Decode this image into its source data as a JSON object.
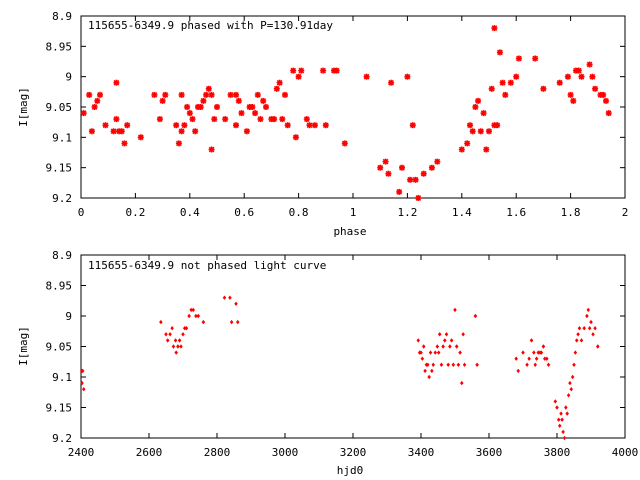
{
  "chart_data": [
    {
      "type": "scatter",
      "title": "115655-6349.9 phased with P=130.91day",
      "xlabel": "phase",
      "ylabel": "I[mag]",
      "xlim": [
        0,
        2
      ],
      "ylim": [
        9.2,
        8.9
      ],
      "y_inverted": true,
      "xticks": [
        "0",
        "0.2",
        "0.4",
        "0.6",
        "0.8",
        "1",
        "1.2",
        "1.4",
        "1.6",
        "1.8",
        "2"
      ],
      "yticks": [
        "8.9",
        "8.95",
        "9",
        "9.05",
        "9.1",
        "9.15",
        "9.2"
      ],
      "marker": "star",
      "color": "#ff0000",
      "grid": false,
      "points": [
        [
          0.01,
          9.06
        ],
        [
          0.03,
          9.03
        ],
        [
          0.04,
          9.09
        ],
        [
          0.05,
          9.05
        ],
        [
          0.06,
          9.04
        ],
        [
          0.07,
          9.03
        ],
        [
          0.09,
          9.08
        ],
        [
          0.12,
          9.09
        ],
        [
          0.13,
          9.01
        ],
        [
          0.13,
          9.07
        ],
        [
          0.14,
          9.09
        ],
        [
          0.15,
          9.09
        ],
        [
          0.16,
          9.11
        ],
        [
          0.17,
          9.08
        ],
        [
          0.22,
          9.1
        ],
        [
          0.27,
          9.03
        ],
        [
          0.29,
          9.07
        ],
        [
          0.3,
          9.04
        ],
        [
          0.31,
          9.03
        ],
        [
          0.35,
          9.08
        ],
        [
          0.36,
          9.11
        ],
        [
          0.37,
          9.03
        ],
        [
          0.37,
          9.09
        ],
        [
          0.38,
          9.08
        ],
        [
          0.39,
          9.05
        ],
        [
          0.4,
          9.06
        ],
        [
          0.41,
          9.07
        ],
        [
          0.42,
          9.09
        ],
        [
          0.43,
          9.05
        ],
        [
          0.44,
          9.05
        ],
        [
          0.45,
          9.04
        ],
        [
          0.46,
          9.03
        ],
        [
          0.47,
          9.02
        ],
        [
          0.48,
          9.12
        ],
        [
          0.48,
          9.03
        ],
        [
          0.49,
          9.07
        ],
        [
          0.5,
          9.05
        ],
        [
          0.53,
          9.07
        ],
        [
          0.55,
          9.03
        ],
        [
          0.57,
          9.03
        ],
        [
          0.57,
          9.08
        ],
        [
          0.58,
          9.04
        ],
        [
          0.59,
          9.06
        ],
        [
          0.61,
          9.09
        ],
        [
          0.62,
          9.05
        ],
        [
          0.63,
          9.05
        ],
        [
          0.64,
          9.06
        ],
        [
          0.65,
          9.03
        ],
        [
          0.66,
          9.07
        ],
        [
          0.67,
          9.04
        ],
        [
          0.68,
          9.05
        ],
        [
          0.7,
          9.07
        ],
        [
          0.71,
          9.07
        ],
        [
          0.72,
          9.02
        ],
        [
          0.73,
          9.01
        ],
        [
          0.74,
          9.07
        ],
        [
          0.75,
          9.03
        ],
        [
          0.76,
          9.08
        ],
        [
          0.78,
          8.99
        ],
        [
          0.79,
          9.1
        ],
        [
          0.8,
          9.0
        ],
        [
          0.81,
          8.99
        ],
        [
          0.83,
          9.07
        ],
        [
          0.84,
          9.08
        ],
        [
          0.86,
          9.08
        ],
        [
          0.89,
          8.99
        ],
        [
          0.9,
          9.08
        ],
        [
          0.93,
          8.99
        ],
        [
          0.94,
          8.99
        ],
        [
          0.97,
          9.11
        ],
        [
          1.05,
          9.0
        ],
        [
          1.1,
          9.15
        ],
        [
          1.12,
          9.14
        ],
        [
          1.13,
          9.16
        ],
        [
          1.14,
          9.01
        ],
        [
          1.17,
          9.19
        ],
        [
          1.18,
          9.15
        ],
        [
          1.2,
          9.0
        ],
        [
          1.21,
          9.17
        ],
        [
          1.22,
          9.08
        ],
        [
          1.23,
          9.17
        ],
        [
          1.24,
          9.2
        ],
        [
          1.26,
          9.16
        ],
        [
          1.29,
          9.15
        ],
        [
          1.31,
          9.14
        ],
        [
          1.4,
          9.12
        ],
        [
          1.42,
          9.11
        ],
        [
          1.43,
          9.08
        ],
        [
          1.44,
          9.09
        ],
        [
          1.45,
          9.05
        ],
        [
          1.46,
          9.04
        ],
        [
          1.47,
          9.09
        ],
        [
          1.48,
          9.06
        ],
        [
          1.49,
          9.12
        ],
        [
          1.5,
          9.09
        ],
        [
          1.51,
          9.02
        ],
        [
          1.52,
          9.08
        ],
        [
          1.52,
          8.92
        ],
        [
          1.53,
          9.08
        ],
        [
          1.54,
          8.96
        ],
        [
          1.55,
          9.01
        ],
        [
          1.56,
          9.03
        ],
        [
          1.58,
          9.01
        ],
        [
          1.6,
          9.0
        ],
        [
          1.61,
          8.97
        ],
        [
          1.67,
          8.97
        ],
        [
          1.7,
          9.02
        ],
        [
          1.76,
          9.01
        ],
        [
          1.79,
          9.0
        ],
        [
          1.8,
          9.03
        ],
        [
          1.81,
          9.04
        ],
        [
          1.82,
          8.99
        ],
        [
          1.83,
          8.99
        ],
        [
          1.84,
          9.0
        ],
        [
          1.87,
          8.98
        ],
        [
          1.88,
          9.0
        ],
        [
          1.89,
          9.02
        ],
        [
          1.91,
          9.03
        ],
        [
          1.92,
          9.03
        ],
        [
          1.93,
          9.04
        ],
        [
          1.94,
          9.06
        ]
      ]
    },
    {
      "type": "scatter",
      "title": "115655-6349.9 not phased light curve",
      "xlabel": "hjd0",
      "ylabel": "I[mag]",
      "xlim": [
        2400,
        4000
      ],
      "ylim": [
        9.2,
        8.9
      ],
      "y_inverted": true,
      "xticks": [
        "2400",
        "2600",
        "2800",
        "3000",
        "3200",
        "3400",
        "3600",
        "3800",
        "4000"
      ],
      "yticks": [
        "8.9",
        "8.95",
        "9",
        "9.05",
        "9.1",
        "9.15",
        "9.2"
      ],
      "marker": "diamond",
      "color": "#ff0000",
      "grid": false,
      "points": [
        [
          2402,
          9.09
        ],
        [
          2403,
          9.11
        ],
        [
          2405,
          9.09
        ],
        [
          2408,
          9.12
        ],
        [
          2635,
          9.01
        ],
        [
          2650,
          9.03
        ],
        [
          2655,
          9.04
        ],
        [
          2662,
          9.03
        ],
        [
          2668,
          9.02
        ],
        [
          2672,
          9.05
        ],
        [
          2678,
          9.04
        ],
        [
          2680,
          9.06
        ],
        [
          2685,
          9.05
        ],
        [
          2690,
          9.04
        ],
        [
          2694,
          9.05
        ],
        [
          2700,
          9.03
        ],
        [
          2705,
          9.02
        ],
        [
          2710,
          9.02
        ],
        [
          2718,
          9.0
        ],
        [
          2724,
          8.99
        ],
        [
          2730,
          8.99
        ],
        [
          2738,
          9.0
        ],
        [
          2745,
          9.0
        ],
        [
          2760,
          9.01
        ],
        [
          2822,
          8.97
        ],
        [
          2838,
          8.97
        ],
        [
          2843,
          9.01
        ],
        [
          2856,
          8.98
        ],
        [
          2861,
          9.01
        ],
        [
          3392,
          9.04
        ],
        [
          3396,
          9.06
        ],
        [
          3400,
          9.06
        ],
        [
          3404,
          9.07
        ],
        [
          3408,
          9.05
        ],
        [
          3412,
          9.09
        ],
        [
          3416,
          9.08
        ],
        [
          3420,
          9.08
        ],
        [
          3424,
          9.1
        ],
        [
          3428,
          9.06
        ],
        [
          3432,
          9.09
        ],
        [
          3436,
          9.08
        ],
        [
          3442,
          9.06
        ],
        [
          3448,
          9.05
        ],
        [
          3452,
          9.06
        ],
        [
          3455,
          9.03
        ],
        [
          3460,
          9.08
        ],
        [
          3465,
          9.05
        ],
        [
          3470,
          9.04
        ],
        [
          3475,
          9.03
        ],
        [
          3480,
          9.08
        ],
        [
          3485,
          9.05
        ],
        [
          3490,
          9.04
        ],
        [
          3495,
          9.08
        ],
        [
          3500,
          8.99
        ],
        [
          3505,
          9.05
        ],
        [
          3510,
          9.08
        ],
        [
          3515,
          9.06
        ],
        [
          3520,
          9.11
        ],
        [
          3524,
          9.03
        ],
        [
          3528,
          9.08
        ],
        [
          3560,
          9.0
        ],
        [
          3565,
          9.08
        ],
        [
          3680,
          9.07
        ],
        [
          3686,
          9.09
        ],
        [
          3700,
          9.06
        ],
        [
          3712,
          9.08
        ],
        [
          3718,
          9.07
        ],
        [
          3725,
          9.04
        ],
        [
          3732,
          9.06
        ],
        [
          3736,
          9.08
        ],
        [
          3740,
          9.07
        ],
        [
          3745,
          9.06
        ],
        [
          3750,
          9.06
        ],
        [
          3754,
          9.06
        ],
        [
          3760,
          9.05
        ],
        [
          3764,
          9.07
        ],
        [
          3770,
          9.07
        ],
        [
          3775,
          9.08
        ],
        [
          3795,
          9.14
        ],
        [
          3800,
          9.15
        ],
        [
          3805,
          9.17
        ],
        [
          3808,
          9.18
        ],
        [
          3812,
          9.16
        ],
        [
          3815,
          9.17
        ],
        [
          3818,
          9.19
        ],
        [
          3822,
          9.2
        ],
        [
          3826,
          9.15
        ],
        [
          3830,
          9.16
        ],
        [
          3834,
          9.13
        ],
        [
          3838,
          9.11
        ],
        [
          3842,
          9.12
        ],
        [
          3846,
          9.1
        ],
        [
          3850,
          9.08
        ],
        [
          3854,
          9.06
        ],
        [
          3858,
          9.04
        ],
        [
          3862,
          9.03
        ],
        [
          3866,
          9.02
        ],
        [
          3872,
          9.04
        ],
        [
          3880,
          9.02
        ],
        [
          3888,
          9.0
        ],
        [
          3892,
          8.99
        ],
        [
          3896,
          9.02
        ],
        [
          3900,
          9.01
        ],
        [
          3906,
          9.03
        ],
        [
          3912,
          9.02
        ],
        [
          3920,
          9.05
        ]
      ]
    }
  ]
}
